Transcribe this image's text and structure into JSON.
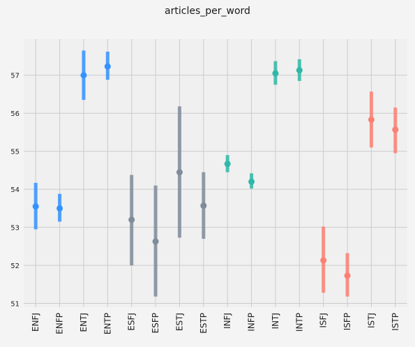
{
  "chart_data": {
    "type": "pointplot",
    "title": "articles_per_word",
    "xlabel": "",
    "ylabel": "",
    "ylim": [
      50.9,
      57.95
    ],
    "yticks": [
      51,
      52,
      53,
      54,
      55,
      56,
      57
    ],
    "grid": true,
    "categories": [
      "ENFJ",
      "ENFP",
      "ENTJ",
      "ENTP",
      "ESFJ",
      "ESFP",
      "ESTJ",
      "ESTP",
      "INFJ",
      "INFP",
      "INTJ",
      "INTP",
      "ISFJ",
      "ISFP",
      "ISTJ",
      "ISTP"
    ],
    "values": [
      53.55,
      53.5,
      57.0,
      57.23,
      53.2,
      52.63,
      54.45,
      53.57,
      54.67,
      54.2,
      57.05,
      57.13,
      52.13,
      51.73,
      55.83,
      55.57
    ],
    "ci_low": [
      52.95,
      53.15,
      56.35,
      56.88,
      52.0,
      51.18,
      52.73,
      52.7,
      54.45,
      54.02,
      56.75,
      56.85,
      51.28,
      51.18,
      55.1,
      54.95
    ],
    "ci_high": [
      54.17,
      53.88,
      57.65,
      57.62,
      54.38,
      54.1,
      56.18,
      54.45,
      54.9,
      54.42,
      57.37,
      57.42,
      53.02,
      52.32,
      56.57,
      56.15
    ],
    "colors": [
      "#3293ff",
      "#3293ff",
      "#3293ff",
      "#3293ff",
      "#7f8c9a",
      "#7f8c9a",
      "#7f8c9a",
      "#7f8c9a",
      "#2fb8a8",
      "#2fb8a8",
      "#2fb8a8",
      "#2fb8a8",
      "#fa8072",
      "#fa8072",
      "#fa8072",
      "#fa8072"
    ]
  }
}
